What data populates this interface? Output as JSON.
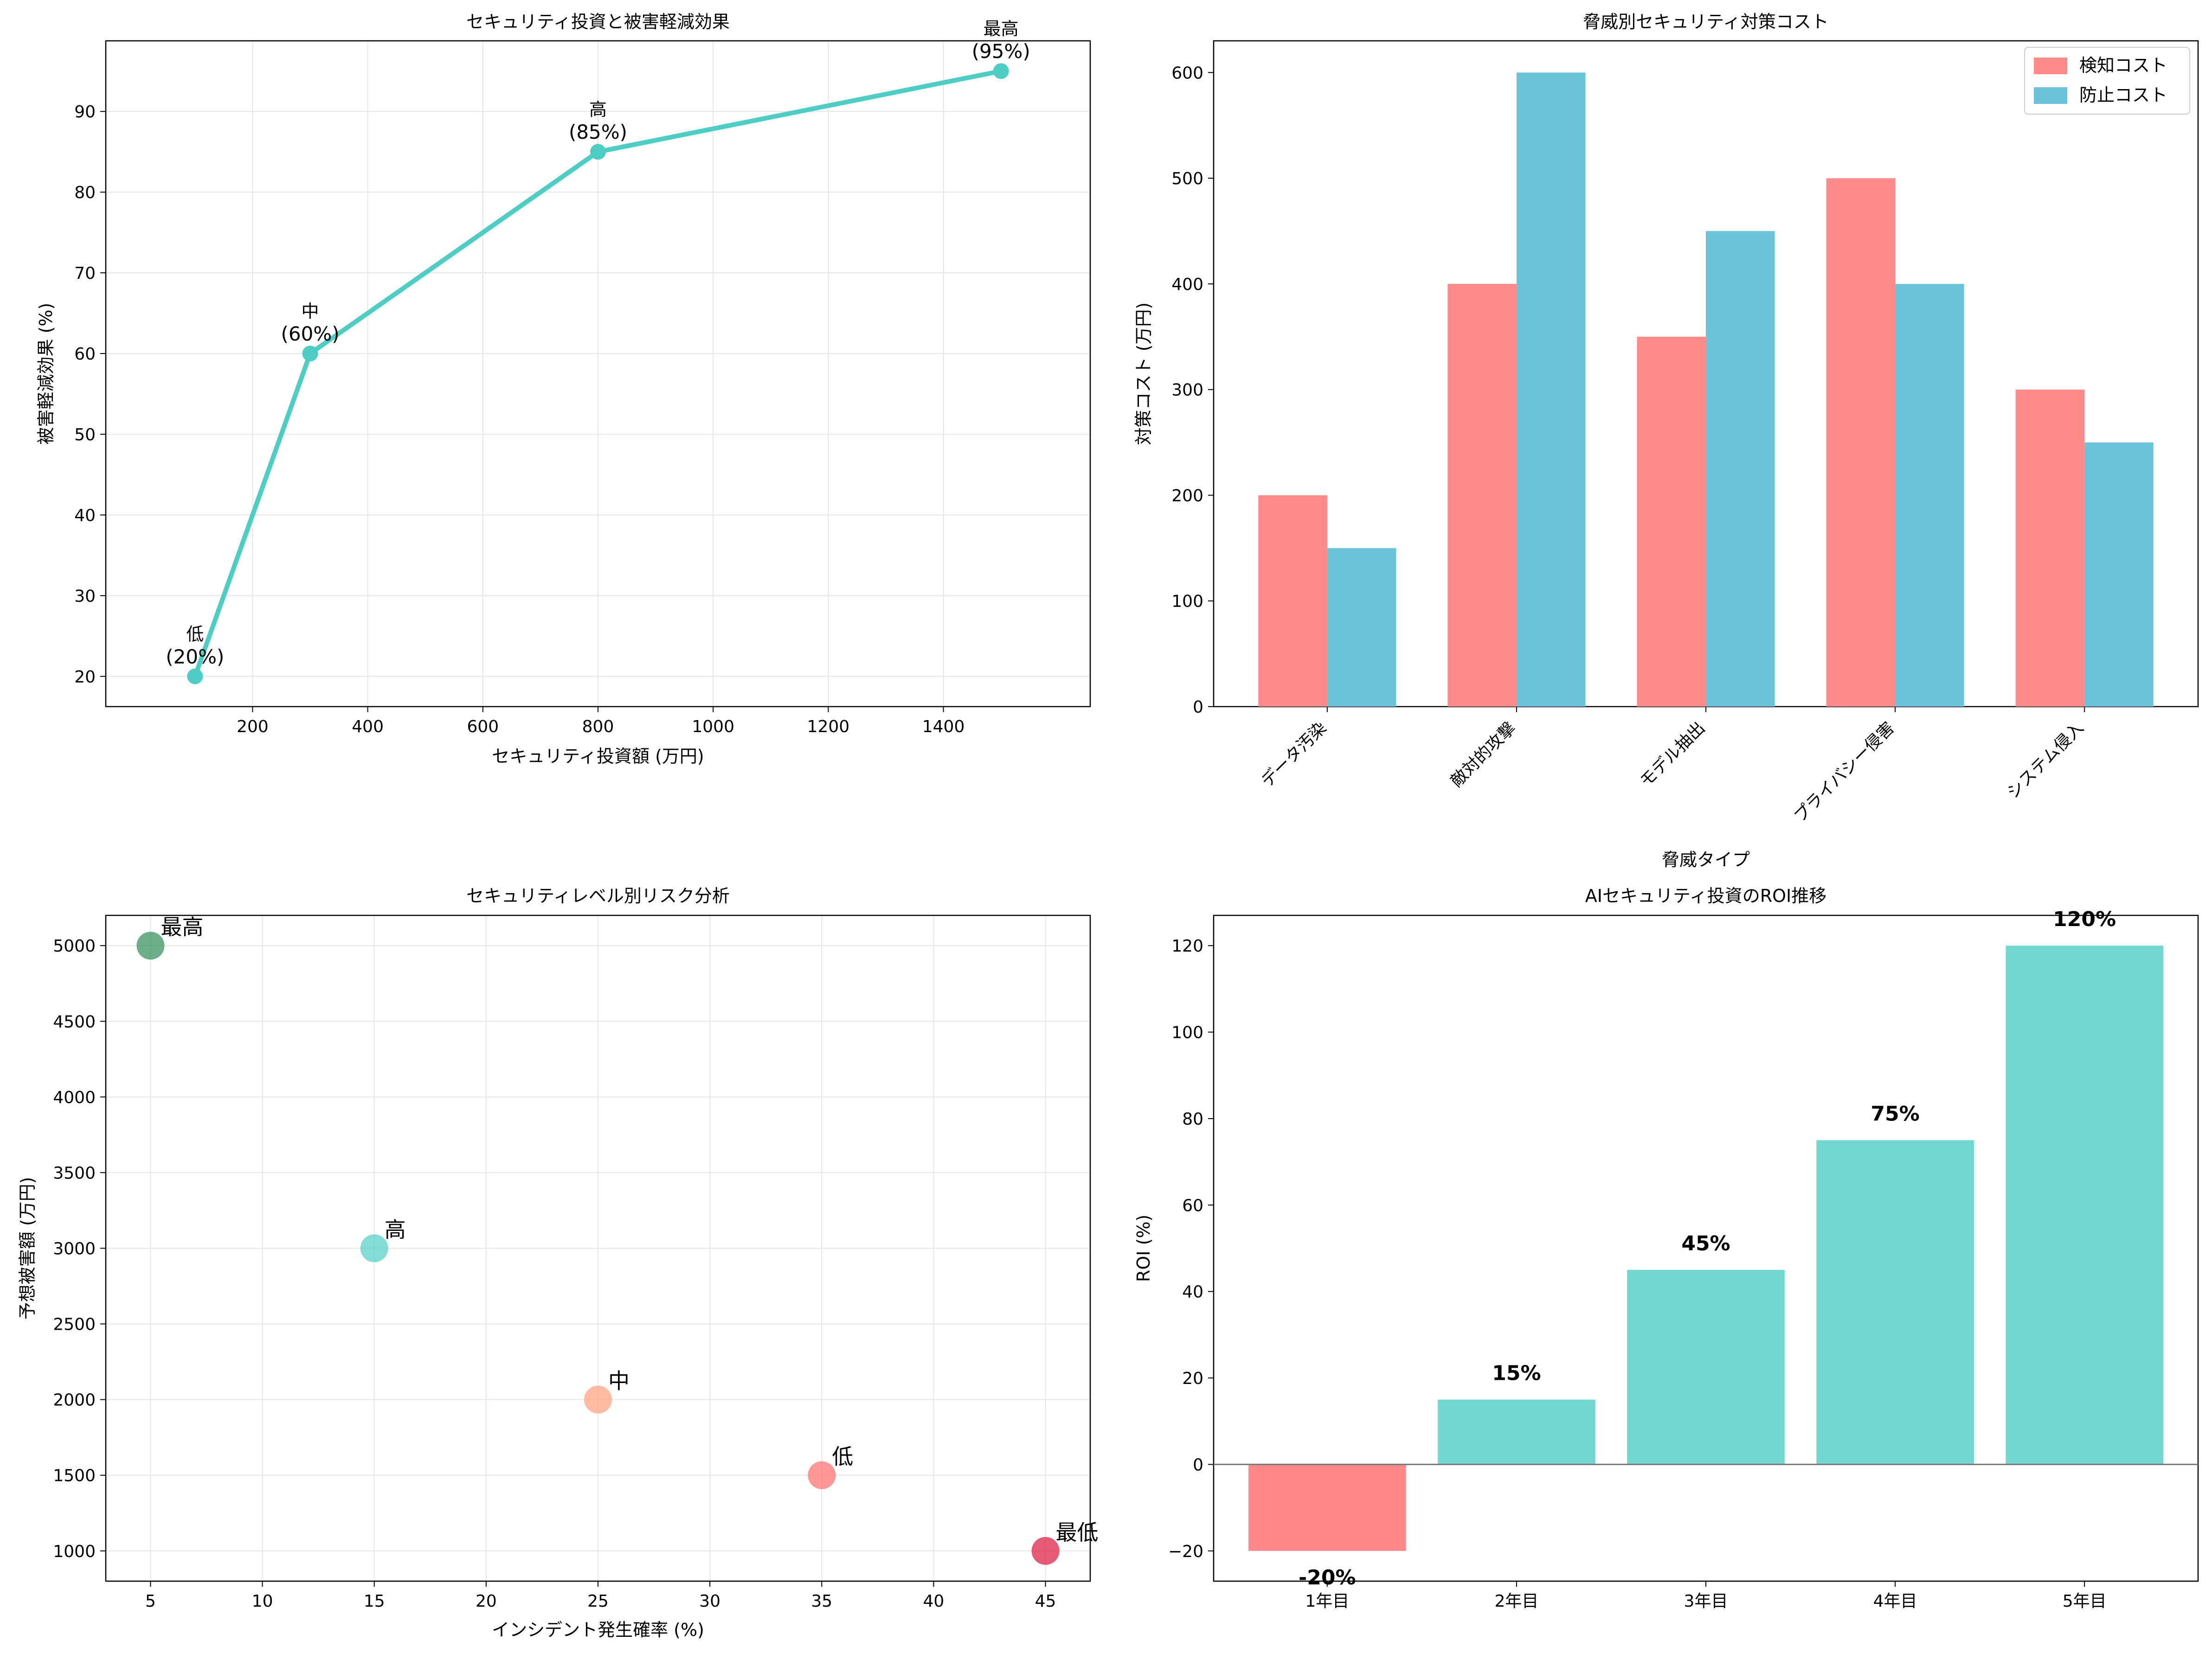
{
  "chart_data": [
    {
      "type": "line",
      "title": "セキュリティ投資と被害軽減効果",
      "xlabel": "セキュリティ投資額 (万円)",
      "ylabel": "被害軽減効果 (%)",
      "x": [
        100,
        300,
        800,
        1500
      ],
      "y": [
        20,
        60,
        85,
        95
      ],
      "point_labels": [
        "低\n(20%)",
        "中\n(60%)",
        "高\n(85%)",
        "最高\n(95%)"
      ],
      "xlim": [
        -55,
        1655
      ],
      "ylim": [
        16.25,
        98.75
      ],
      "xticks": [
        200,
        400,
        600,
        800,
        1000,
        1200,
        1400
      ],
      "yticks": [
        20,
        30,
        40,
        50,
        60,
        70,
        80,
        90
      ],
      "grid": true,
      "color": "#4ECDC4"
    },
    {
      "type": "bar",
      "title": "脅威別セキュリティ対策コスト",
      "xlabel": "脅威タイプ",
      "ylabel": "対策コスト (万円)",
      "categories": [
        "データ汚染",
        "敵対的攻撃",
        "モデル抽出",
        "プライバシー侵害",
        "システム侵入"
      ],
      "series": [
        {
          "name": "検知コスト",
          "values": [
            200,
            400,
            350,
            500,
            300
          ],
          "color": "#FF8A8A"
        },
        {
          "name": "防止コスト",
          "values": [
            150,
            600,
            450,
            400,
            250
          ],
          "color": "#6BC4D9"
        }
      ],
      "ylim": [
        0,
        630
      ],
      "yticks": [
        0,
        100,
        200,
        300,
        400,
        500,
        600
      ],
      "legend": "top-right",
      "grid": false
    },
    {
      "type": "scatter",
      "title": "セキュリティレベル別リスク分析",
      "xlabel": "インシデント発生確率 (%)",
      "ylabel": "予想被害額 (万円)",
      "points": [
        {
          "label": "最高",
          "x": 5,
          "y": 5000,
          "color": "#2E8B57"
        },
        {
          "label": "高",
          "x": 15,
          "y": 3000,
          "color": "#4ECDC4"
        },
        {
          "label": "中",
          "x": 25,
          "y": 2000,
          "color": "#FFA07A"
        },
        {
          "label": "低",
          "x": 35,
          "y": 1500,
          "color": "#FF6B6B"
        },
        {
          "label": "最低",
          "x": 45,
          "y": 1000,
          "color": "#DC143C"
        }
      ],
      "xlim": [
        3,
        47
      ],
      "ylim": [
        800,
        5200
      ],
      "xticks": [
        5,
        10,
        15,
        20,
        25,
        30,
        35,
        40,
        45
      ],
      "yticks": [
        1000,
        1500,
        2000,
        2500,
        3000,
        3500,
        4000,
        4500,
        5000
      ],
      "grid": true
    },
    {
      "type": "bar",
      "title": "AIセキュリティ投資のROI推移",
      "xlabel": "",
      "ylabel": "ROI (%)",
      "categories": [
        "1年目",
        "2年目",
        "3年目",
        "4年目",
        "5年目"
      ],
      "values": [
        -20,
        15,
        45,
        75,
        120
      ],
      "value_labels": [
        "-20%",
        "15%",
        "45%",
        "75%",
        "120%"
      ],
      "colors": {
        "positive": "#4ECDC4",
        "negative": "#FF6B6B"
      },
      "ylim": [
        -27,
        127
      ],
      "yticks": [
        -20,
        0,
        20,
        40,
        60,
        80,
        100,
        120
      ],
      "grid": false
    }
  ]
}
